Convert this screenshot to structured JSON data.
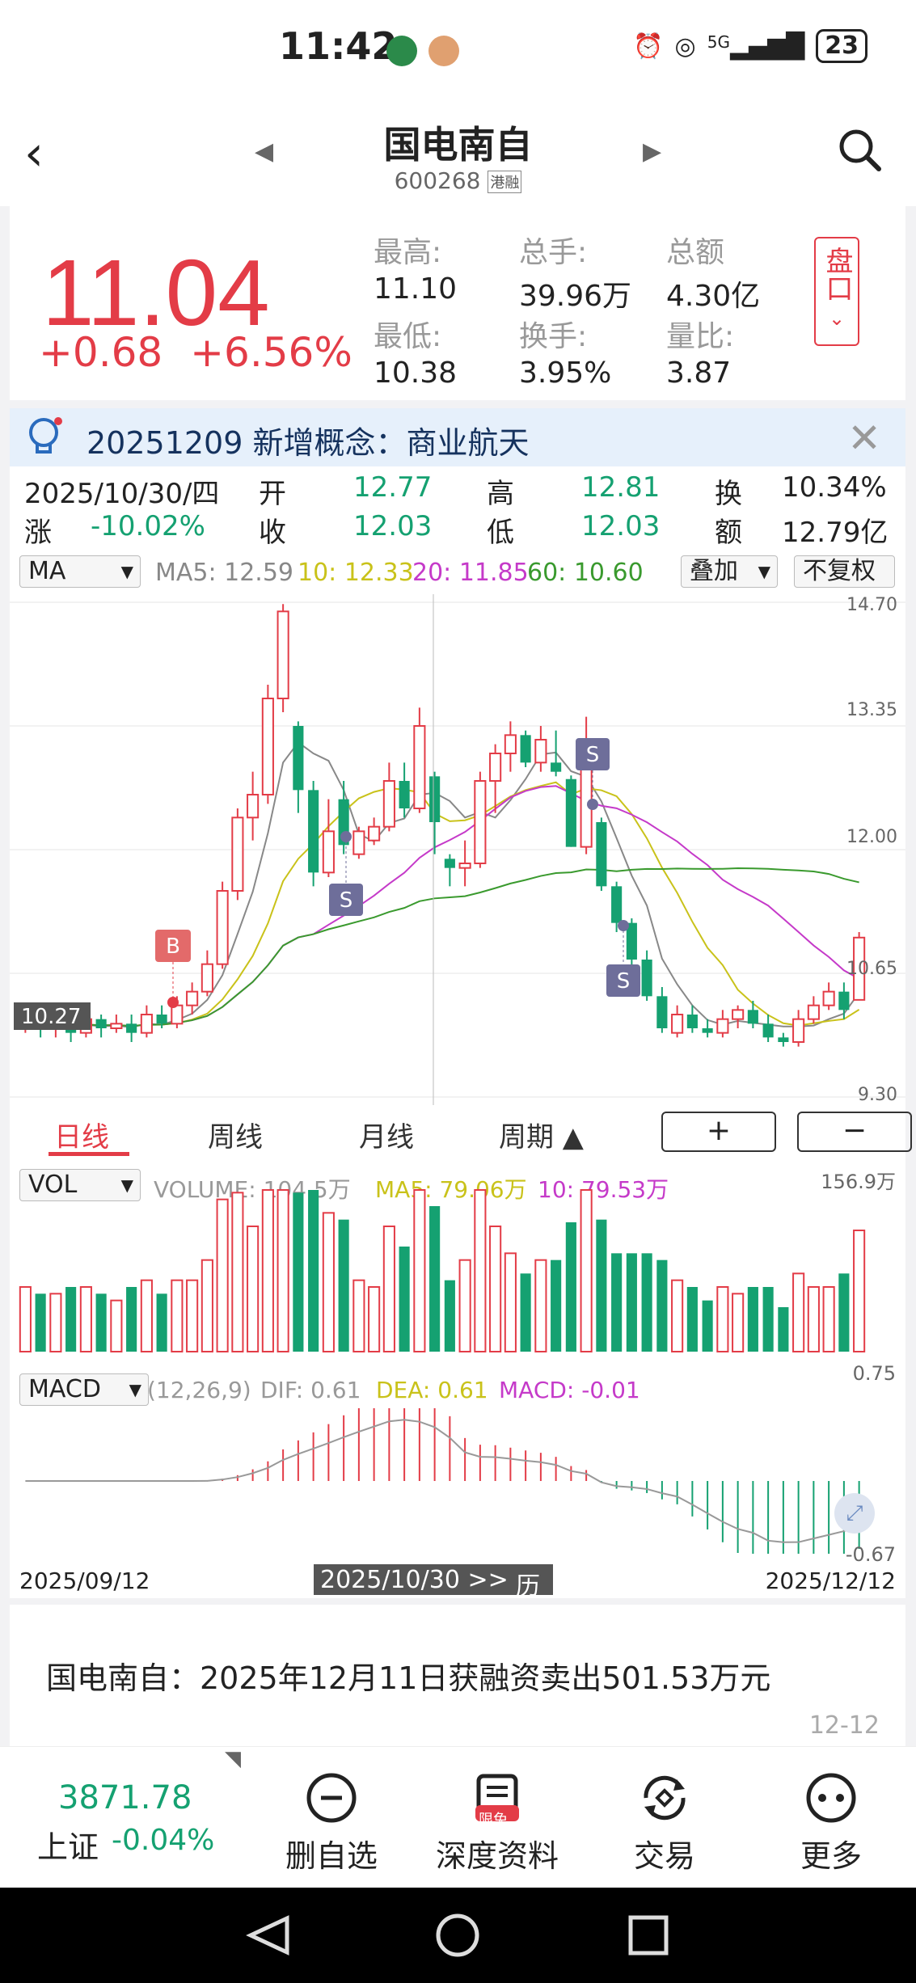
{
  "status": {
    "time": "11:42",
    "signal": "5G",
    "battery": "23"
  },
  "nav": {
    "title": "国电南自",
    "code": "600268",
    "tag": "港融"
  },
  "quote": {
    "price": "11.04",
    "change": "+0.68",
    "change_pct": "+6.56%",
    "stats": [
      {
        "label": "最高:",
        "value": "11.10"
      },
      {
        "label": "总手:",
        "value": "39.96万"
      },
      {
        "label": "总额",
        "value": "4.30亿"
      },
      {
        "label": "最低:",
        "value": "10.38"
      },
      {
        "label": "换手:",
        "value": "3.95%"
      },
      {
        "label": "量比:",
        "value": "3.87"
      }
    ],
    "pan_label": "盘口"
  },
  "concept": {
    "text": "20251209 新增概念：商业航天"
  },
  "ohlc": {
    "date": "2025/10/30/四",
    "open_label": "开",
    "open": "12.77",
    "high_label": "高",
    "high": "12.81",
    "turnover_label": "换",
    "turnover": "10.34%",
    "change_label": "涨",
    "change": "-10.02%",
    "close_label": "收",
    "close": "12.03",
    "low_label": "低",
    "low": "12.03",
    "amount_label": "额",
    "amount": "12.79亿"
  },
  "ma_bar": {
    "selector": "MA",
    "ma5": "MA5: 12.59",
    "ma10": "10: 12.33",
    "ma20": "20: 11.85",
    "ma60": "60: 10.60",
    "overlay": "叠加",
    "adjust": "不复权"
  },
  "kline_axis": {
    "y1": "14.70",
    "y2": "13.35",
    "y3": "12.00",
    "y4": "10.65",
    "y5": "9.30",
    "current_price": "10.27"
  },
  "signals": {
    "buy": "B",
    "sell": "S"
  },
  "period_tabs": {
    "day": "日线",
    "week": "周线",
    "month": "月线",
    "period": "周期 ▲",
    "zoom_in": "+",
    "zoom_out": "−"
  },
  "vol_bar": {
    "selector": "VOL",
    "volume": "VOLUME: 104.5万",
    "ma5": "MA5: 79.06万",
    "ma10": "10: 79.53万",
    "max": "156.9万"
  },
  "macd_bar": {
    "selector": "MACD",
    "params": "(12,26,9)",
    "dif": "DIF: 0.61",
    "dea": "DEA: 0.61",
    "macd": "MACD: -0.01",
    "top": "0.75",
    "bottom": "-0.67"
  },
  "dates": {
    "start": "2025/09/12",
    "cursor": "2025/10/30 >>",
    "calendar": "历",
    "end": "2025/12/12"
  },
  "news": {
    "text": "国电南自：2025年12月11日获融资卖出501.53万元",
    "date": "12-12"
  },
  "bottom": {
    "index_value": "3871.78",
    "index_name": "上证",
    "index_change": "-0.04%",
    "items": [
      {
        "label": "删自选",
        "icon": "minus-circle-icon"
      },
      {
        "label": "深度资料",
        "icon": "document-icon",
        "badge": "限免"
      },
      {
        "label": "交易",
        "icon": "refresh-icon"
      },
      {
        "label": "更多",
        "icon": "more-icon"
      }
    ]
  },
  "colors": {
    "up": "#e33c47",
    "down": "#15a171",
    "ma5": "#888888",
    "ma10": "#c9c21a",
    "ma20": "#c53ac9",
    "ma60": "#3a9a2e"
  },
  "chart_data": {
    "type": "candlestick",
    "x_range": [
      "2025/09/12",
      "2025/12/12"
    ],
    "y_ticks": [
      14.7,
      13.35,
      12.0,
      10.65,
      9.3
    ],
    "candles": [
      [
        10.05,
        10.15,
        10.3,
        10.0
      ],
      [
        10.15,
        10.05,
        10.2,
        9.95
      ],
      [
        10.05,
        10.1,
        10.2,
        9.95
      ],
      [
        10.1,
        10.0,
        10.2,
        9.9
      ],
      [
        10.0,
        10.15,
        10.25,
        9.95
      ],
      [
        10.15,
        10.05,
        10.2,
        9.95
      ],
      [
        10.05,
        10.1,
        10.2,
        10.0
      ],
      [
        10.1,
        10.0,
        10.2,
        9.9
      ],
      [
        10.0,
        10.2,
        10.3,
        9.95
      ],
      [
        10.2,
        10.1,
        10.3,
        10.05
      ],
      [
        10.1,
        10.3,
        10.4,
        10.05
      ],
      [
        10.3,
        10.45,
        10.55,
        10.2
      ],
      [
        10.45,
        10.75,
        10.9,
        10.4
      ],
      [
        10.75,
        11.55,
        11.65,
        10.7
      ],
      [
        11.55,
        12.35,
        12.45,
        11.45
      ],
      [
        12.35,
        12.6,
        12.85,
        12.1
      ],
      [
        12.6,
        13.65,
        13.8,
        12.5
      ],
      [
        13.65,
        14.6,
        14.68,
        13.5
      ],
      [
        13.35,
        12.65,
        13.4,
        12.4
      ],
      [
        12.65,
        11.75,
        12.75,
        11.6
      ],
      [
        11.75,
        12.2,
        12.55,
        11.7
      ],
      [
        12.55,
        12.05,
        12.75,
        11.95
      ],
      [
        11.95,
        12.2,
        12.25,
        11.9
      ],
      [
        12.1,
        12.25,
        12.35,
        12.05
      ],
      [
        12.25,
        12.75,
        12.95,
        12.2
      ],
      [
        12.75,
        12.45,
        12.95,
        12.35
      ],
      [
        12.45,
        13.35,
        13.55,
        12.4
      ],
      [
        12.8,
        12.3,
        12.85,
        11.95
      ],
      [
        11.9,
        11.8,
        11.95,
        11.6
      ],
      [
        11.8,
        11.85,
        12.1,
        11.6
      ],
      [
        11.85,
        12.75,
        12.85,
        11.8
      ],
      [
        12.75,
        13.05,
        13.15,
        12.4
      ],
      [
        13.05,
        13.25,
        13.4,
        12.85
      ],
      [
        13.25,
        12.95,
        13.3,
        12.9
      ],
      [
        12.95,
        13.2,
        13.35,
        12.85
      ],
      [
        12.95,
        12.85,
        13.3,
        12.8
      ],
      [
        12.77,
        12.03,
        12.81,
        12.03
      ],
      [
        12.03,
        12.95,
        13.45,
        11.95
      ],
      [
        12.3,
        11.6,
        12.35,
        11.55
      ],
      [
        11.6,
        11.2,
        11.65,
        11.1
      ],
      [
        11.2,
        10.8,
        11.25,
        10.7
      ],
      [
        10.8,
        10.4,
        10.9,
        10.35
      ],
      [
        10.4,
        10.05,
        10.5,
        10.0
      ],
      [
        10.0,
        10.2,
        10.3,
        9.95
      ],
      [
        10.2,
        10.05,
        10.3,
        10.0
      ],
      [
        10.05,
        10.0,
        10.15,
        9.95
      ],
      [
        10.0,
        10.15,
        10.25,
        9.95
      ],
      [
        10.15,
        10.25,
        10.3,
        10.05
      ],
      [
        10.25,
        10.1,
        10.35,
        10.05
      ],
      [
        10.1,
        9.95,
        10.2,
        9.9
      ],
      [
        9.95,
        9.9,
        10.0,
        9.85
      ],
      [
        9.9,
        10.15,
        10.25,
        9.85
      ],
      [
        10.15,
        10.3,
        10.4,
        10.1
      ],
      [
        10.3,
        10.45,
        10.55,
        10.25
      ],
      [
        10.45,
        10.25,
        10.55,
        10.15
      ],
      [
        10.36,
        11.04,
        11.1,
        10.38
      ]
    ]
  }
}
